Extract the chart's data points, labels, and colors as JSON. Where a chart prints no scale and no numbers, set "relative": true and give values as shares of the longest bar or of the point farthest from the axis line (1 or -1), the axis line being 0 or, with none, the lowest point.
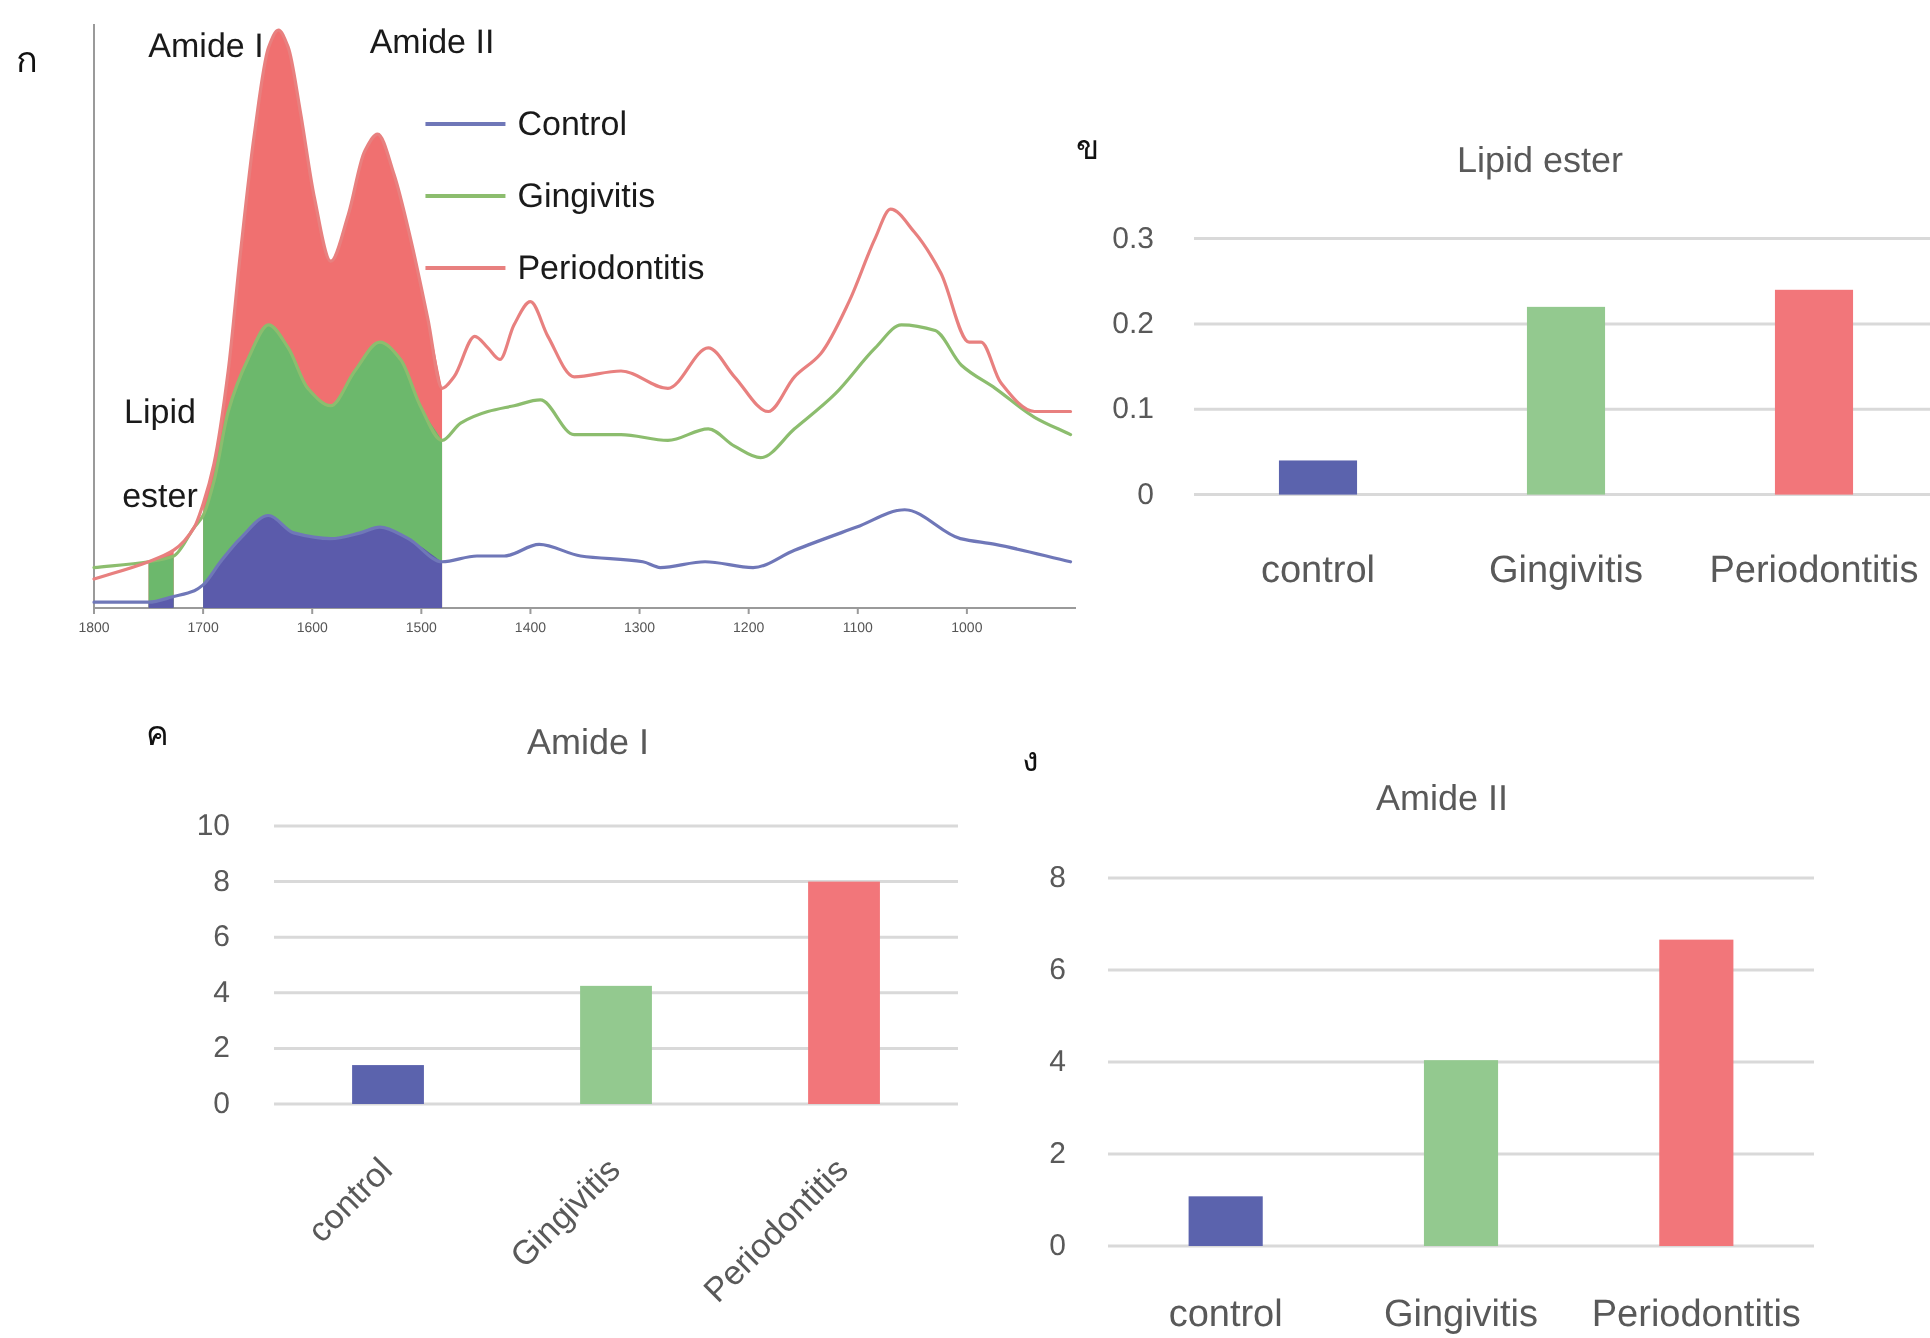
{
  "chart_data": [
    {
      "type": "line",
      "relative": true,
      "xlim": [
        1800,
        900
      ],
      "xticks": [
        1800,
        1700,
        1600,
        1500,
        1400,
        1300,
        1200,
        1100,
        1000
      ],
      "legend": "top",
      "annotations": [
        "ก",
        "Amide I",
        "Amide II",
        "Lipid",
        "ester"
      ],
      "series": [
        {
          "type": "area",
          "color": "#f07070",
          "x": [
            1750,
            1727
          ],
          "values": [
            0.08,
            0.1
          ]
        },
        {
          "type": "area",
          "color": "#6cb86c",
          "x": [
            1750,
            1727
          ],
          "values": [
            0.08,
            0.09
          ]
        },
        {
          "type": "area",
          "color": "#5b5bab",
          "x": [
            1750,
            1727
          ],
          "values": [
            0.01,
            0.02
          ]
        },
        {
          "type": "area",
          "color": "#f07070",
          "x": [
            1700,
            1690,
            1677,
            1666,
            1653,
            1640,
            1631,
            1622,
            1611,
            1598,
            1583,
            1567,
            1552,
            1540,
            1525,
            1510,
            1494,
            1481
          ],
          "values": [
            0.18,
            0.25,
            0.41,
            0.61,
            0.82,
            0.97,
            1,
            0.97,
            0.86,
            0.71,
            0.6,
            0.68,
            0.79,
            0.82,
            0.75,
            0.64,
            0.5,
            0.38
          ]
        },
        {
          "type": "area",
          "color": "#6cb86c",
          "x": [
            1700,
            1690,
            1677,
            1659,
            1640,
            1622,
            1604,
            1583,
            1561,
            1538,
            1519,
            1501,
            1481
          ],
          "values": [
            0.16,
            0.22,
            0.34,
            0.43,
            0.49,
            0.45,
            0.38,
            0.35,
            0.41,
            0.46,
            0.43,
            0.35,
            0.29
          ]
        },
        {
          "type": "area",
          "color": "#5b5bab",
          "x": [
            1700,
            1684,
            1666,
            1640,
            1617,
            1583,
            1556,
            1538,
            1512,
            1481
          ],
          "values": [
            0.04,
            0.08,
            0.12,
            0.16,
            0.13,
            0.12,
            0.13,
            0.14,
            0.12,
            0.08
          ]
        },
        {
          "name": "Control",
          "color": "#6f77b8",
          "x": [
            1800,
            1750,
            1727,
            1708,
            1700,
            1684,
            1666,
            1640,
            1617,
            1583,
            1556,
            1538,
            1512,
            1481,
            1449,
            1424,
            1392,
            1354,
            1297,
            1281,
            1240,
            1196,
            1158,
            1101,
            1057,
            1006,
            974,
            905
          ],
          "values": [
            0.01,
            0.01,
            0.02,
            0.03,
            0.04,
            0.08,
            0.12,
            0.16,
            0.13,
            0.12,
            0.13,
            0.14,
            0.12,
            0.08,
            0.09,
            0.09,
            0.11,
            0.09,
            0.08,
            0.07,
            0.08,
            0.07,
            0.1,
            0.14,
            0.17,
            0.12,
            0.11,
            0.08
          ]
        },
        {
          "name": "Gingivitis",
          "color": "#8cbd6e",
          "x": [
            1800,
            1750,
            1727,
            1708,
            1700,
            1690,
            1677,
            1659,
            1640,
            1622,
            1604,
            1583,
            1561,
            1538,
            1519,
            1501,
            1481,
            1464,
            1439,
            1415,
            1391,
            1360,
            1317,
            1274,
            1237,
            1213,
            1189,
            1158,
            1121,
            1084,
            1060,
            1029,
            1005,
            974,
            938,
            905
          ],
          "values": [
            0.07,
            0.08,
            0.09,
            0.14,
            0.16,
            0.22,
            0.34,
            0.43,
            0.49,
            0.45,
            0.38,
            0.35,
            0.41,
            0.46,
            0.43,
            0.35,
            0.29,
            0.32,
            0.34,
            0.35,
            0.36,
            0.3,
            0.3,
            0.29,
            0.31,
            0.28,
            0.26,
            0.31,
            0.37,
            0.45,
            0.49,
            0.48,
            0.42,
            0.38,
            0.33,
            0.3
          ]
        },
        {
          "name": "Periodontitis",
          "color": "#e8807f",
          "x": [
            1800,
            1750,
            1727,
            1708,
            1700,
            1690,
            1677,
            1666,
            1653,
            1640,
            1631,
            1622,
            1611,
            1598,
            1583,
            1567,
            1552,
            1540,
            1525,
            1510,
            1494,
            1481,
            1470,
            1451,
            1439,
            1428,
            1415,
            1400,
            1384,
            1360,
            1317,
            1274,
            1237,
            1213,
            1182,
            1158,
            1134,
            1108,
            1084,
            1070,
            1048,
            1024,
            998,
            987,
            969,
            938,
            905
          ],
          "values": [
            0.05,
            0.08,
            0.1,
            0.14,
            0.18,
            0.25,
            0.41,
            0.61,
            0.82,
            0.97,
            1,
            0.97,
            0.86,
            0.71,
            0.6,
            0.68,
            0.79,
            0.82,
            0.75,
            0.64,
            0.5,
            0.38,
            0.4,
            0.47,
            0.45,
            0.43,
            0.49,
            0.53,
            0.47,
            0.4,
            0.41,
            0.38,
            0.45,
            0.4,
            0.34,
            0.4,
            0.44,
            0.53,
            0.64,
            0.69,
            0.65,
            0.58,
            0.46,
            0.46,
            0.39,
            0.34,
            0.34
          ]
        }
      ]
    },
    {
      "type": "bar",
      "title": "Lipid ester",
      "annotations": [
        "ข"
      ],
      "categories": [
        "control",
        "Gingivitis",
        "Periodontitis"
      ],
      "values": [
        0.04,
        0.22,
        0.24
      ],
      "colors": [
        "#5b63ad",
        "#93c98f",
        "#f2767a"
      ],
      "ylim": [
        0,
        0.3
      ],
      "yticks": [
        0,
        0.1,
        0.2,
        0.3
      ],
      "grid": "y"
    },
    {
      "type": "bar",
      "title": "Amide I",
      "annotations": [
        "ค"
      ],
      "categories": [
        "control",
        "Gingivitis",
        "Periodontitis"
      ],
      "values": [
        1.4,
        4.25,
        8
      ],
      "colors": [
        "#5b63ad",
        "#93c98f",
        "#f2767a"
      ],
      "ylim": [
        0,
        10
      ],
      "yticks": [
        0,
        2,
        4,
        6,
        8,
        10
      ],
      "grid": "y"
    },
    {
      "type": "bar",
      "title": "Amide II",
      "annotations": [
        "ง"
      ],
      "categories": [
        "control",
        "Gingivitis",
        "Periodontitis"
      ],
      "values": [
        1.08,
        4.04,
        6.66
      ],
      "colors": [
        "#5b63ad",
        "#93c98f",
        "#f2767a"
      ],
      "ylim": [
        0,
        8
      ],
      "yticks": [
        0,
        2,
        4,
        6,
        8
      ],
      "grid": "y"
    }
  ]
}
